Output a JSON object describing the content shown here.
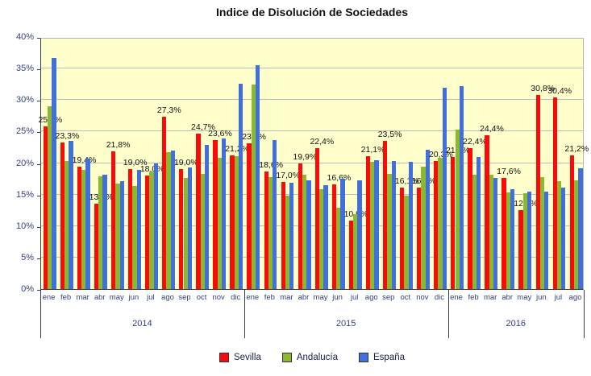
{
  "chart_data": {
    "type": "bar",
    "title": "Indice de Disolución de Sociedades",
    "xlabel": "",
    "ylabel": "",
    "ylim": [
      0,
      40
    ],
    "y_tick_step": 5,
    "y_tick_labels": [
      "0%",
      "5%",
      "10%",
      "15%",
      "20%",
      "25%",
      "30%",
      "35%",
      "40%"
    ],
    "grid": true,
    "plot_background": "#ffffcc",
    "legend_position": "bottom",
    "categories": [
      "ene",
      "feb",
      "mar",
      "abr",
      "may",
      "jun",
      "jul",
      "ago",
      "sep",
      "oct",
      "nov",
      "dic",
      "ene",
      "feb",
      "mar",
      "abr",
      "may",
      "jun",
      "jul",
      "ago",
      "sep",
      "oct",
      "nov",
      "dic",
      "ene",
      "feb",
      "mar",
      "abr",
      "may",
      "jun",
      "jul",
      "ago"
    ],
    "year_groups": [
      {
        "label": "2014",
        "months": 12
      },
      {
        "label": "2015",
        "months": 12
      },
      {
        "label": "2016",
        "months": 8
      }
    ],
    "series": [
      {
        "name": "Sevilla",
        "color": "#fb0a0a",
        "data_labels": true,
        "values": [
          25.8,
          23.3,
          19.4,
          13.6,
          21.8,
          19.0,
          18.0,
          27.3,
          19.0,
          24.7,
          23.6,
          21.2,
          23.1,
          18.6,
          17.0,
          19.9,
          22.4,
          16.6,
          10.9,
          21.1,
          23.5,
          16.1,
          16.1,
          20.3,
          21.0,
          22.4,
          24.4,
          17.6,
          12.5,
          30.8,
          30.4,
          21.2
        ]
      },
      {
        "name": "Andalucía",
        "color": "#8ab82e",
        "data_labels": false,
        "values": [
          29.0,
          20.3,
          18.9,
          17.9,
          16.7,
          16.4,
          18.7,
          21.7,
          17.7,
          18.3,
          20.8,
          21.1,
          32.4,
          17.8,
          14.8,
          18.2,
          15.8,
          12.9,
          11.9,
          20.2,
          18.3,
          14.8,
          19.4,
          20.8,
          25.3,
          18.1,
          18.2,
          15.4,
          15.2,
          17.8,
          17.1,
          17.3
        ]
      },
      {
        "name": "España",
        "color": "#4170de",
        "data_labels": false,
        "values": [
          36.7,
          23.5,
          20.7,
          18.1,
          17.1,
          18.9,
          19.9,
          22.0,
          19.3,
          22.9,
          23.9,
          32.6,
          35.5,
          23.7,
          16.9,
          17.2,
          16.5,
          17.5,
          17.3,
          20.5,
          20.3,
          20.2,
          22.1,
          32.0,
          32.2,
          21.0,
          17.6,
          15.9,
          15.5,
          15.5,
          16.1,
          19.2
        ]
      }
    ],
    "data_label_format": "decimal-comma-percent-1dec"
  },
  "legend": {
    "items": [
      {
        "label": "Sevilla",
        "color": "#fb0a0a"
      },
      {
        "label": "Andalucía",
        "color": "#8ab82e"
      },
      {
        "label": "España",
        "color": "#4170de"
      }
    ]
  }
}
